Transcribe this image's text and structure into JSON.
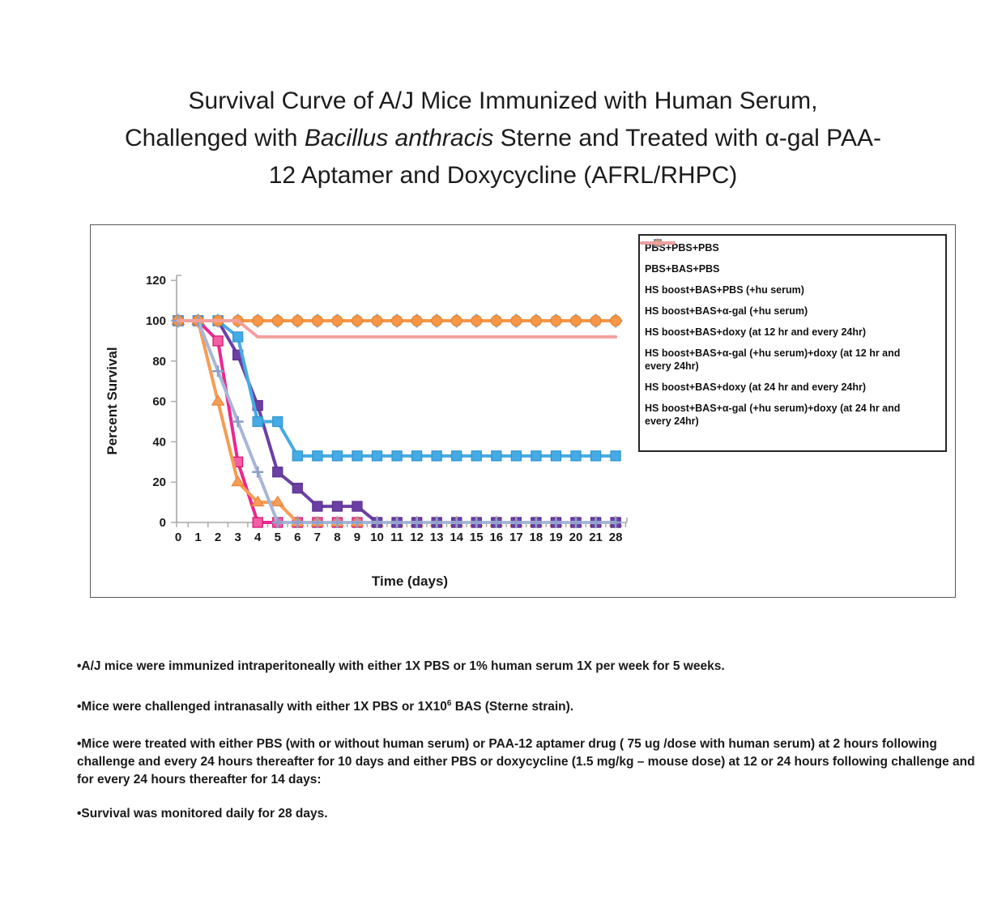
{
  "title": {
    "line1": "Survival Curve of A/J Mice Immunized with Human Serum,",
    "line2": {
      "pre": "Challenged with ",
      "italic": "Bacillus anthracis",
      "post": " Sterne and Treated with α-gal PAA-"
    },
    "line3": "12 Aptamer and Doxycycline (AFRL/RHPC)"
  },
  "chart_data": {
    "type": "line",
    "title": "",
    "xlabel": "Time (days)",
    "ylabel": "Percent Survival",
    "categories": [
      "0",
      "1",
      "2",
      "3",
      "4",
      "5",
      "6",
      "7",
      "8",
      "9",
      "10",
      "11",
      "12",
      "13",
      "14",
      "15",
      "16",
      "17",
      "18",
      "19",
      "20",
      "21",
      "28"
    ],
    "ylim": [
      0,
      120
    ],
    "yticks": [
      0,
      20,
      40,
      60,
      80,
      100,
      120
    ],
    "grid": false,
    "legend_position": "right-inside",
    "axis_color": "#a6a6a6",
    "series": [
      {
        "name": "PBS+PBS+PBS",
        "color": "#5b7fc0",
        "marker": "diamond",
        "marker_color": "#3a5ca8",
        "marker_edge": "#8fb4e3",
        "values": [
          100,
          100,
          100,
          100,
          100,
          100,
          100,
          100,
          100,
          100,
          100,
          100,
          100,
          100,
          100,
          100,
          100,
          100,
          100,
          100,
          100,
          100,
          100
        ]
      },
      {
        "name": "PBS+BAS+PBS",
        "color": "#ec268f",
        "marker": "square",
        "marker_color": "#f25fa5",
        "marker_edge": "#d6186e",
        "values": [
          100,
          100,
          90,
          30,
          0,
          0,
          0,
          0,
          0,
          0,
          0,
          0,
          0,
          0,
          0,
          0,
          0,
          0,
          0,
          0,
          0,
          0,
          0
        ]
      },
      {
        "name": "HS boost+BAS+PBS (+hu serum)",
        "color": "#f79c55",
        "marker": "triangle",
        "marker_color": "#f79c55",
        "marker_edge": "#ed7d31",
        "values": [
          100,
          100,
          60,
          20,
          10,
          10,
          0,
          0,
          0,
          0,
          0,
          0,
          0,
          0,
          0,
          0,
          0,
          0,
          0,
          0,
          0,
          0,
          0
        ]
      },
      {
        "name": "HS boost+BAS+α-gal (+hu serum)",
        "color": "#6c3fa5",
        "marker": "square",
        "marker_color": "#6c3fa5",
        "marker_edge": "#5a3390",
        "values": [
          100,
          100,
          100,
          83,
          58,
          25,
          17,
          8,
          8,
          8,
          0,
          0,
          0,
          0,
          0,
          0,
          0,
          0,
          0,
          0,
          0,
          0,
          0
        ]
      },
      {
        "name": "HS boost+BAS+doxy (at 12 hr and every 24hr)",
        "color": "#46abe4",
        "marker": "square",
        "marker_color": "#46abe4",
        "marker_edge": "#2f96d4",
        "values": [
          100,
          100,
          100,
          92,
          50,
          50,
          33,
          33,
          33,
          33,
          33,
          33,
          33,
          33,
          33,
          33,
          33,
          33,
          33,
          33,
          33,
          33,
          33
        ]
      },
      {
        "name": "HS boost+BAS+α-gal (+hu serum)+doxy (at 12 hr and every 24hr)",
        "color": "#f79646",
        "marker": "circle",
        "marker_color": "#f79646",
        "marker_edge": "#e0812f",
        "values": [
          100,
          100,
          100,
          100,
          100,
          100,
          100,
          100,
          100,
          100,
          100,
          100,
          100,
          100,
          100,
          100,
          100,
          100,
          100,
          100,
          100,
          100,
          100
        ]
      },
      {
        "name": "HS boost+BAS+doxy (at 24 hr and every 24hr)",
        "color": "#a7b6d8",
        "marker": "plus",
        "marker_color": "#8e9fc9",
        "marker_edge": "#8e9fc9",
        "values": [
          100,
          100,
          75,
          50,
          25,
          0,
          0,
          0,
          0,
          0,
          0,
          0,
          0,
          0,
          0,
          0,
          0,
          0,
          0,
          0,
          0,
          0,
          0
        ]
      },
      {
        "name": "HS boost+BAS+α-gal (+hu serum)+doxy (at 24 hr and every 24hr)",
        "color": "#f2a09e",
        "marker": "none",
        "marker_color": "#f2a09e",
        "marker_edge": "#f2a09e",
        "values": [
          100,
          100,
          100,
          100,
          92,
          92,
          92,
          92,
          92,
          92,
          92,
          92,
          92,
          92,
          92,
          92,
          92,
          92,
          92,
          92,
          92,
          92,
          92
        ]
      }
    ]
  },
  "notes": {
    "b1": "•A/J mice were immunized intraperitoneally with either 1X PBS or 1% human serum 1X per week for 5 weeks.",
    "b2": {
      "pre": "•Mice were challenged intranasally with either 1X PBS or 1X10",
      "sup": "6",
      "post": " BAS (Sterne strain)."
    },
    "b3": "•Mice were treated with either PBS (with or without human serum) or PAA-12 aptamer drug ( 75 ug /dose with human serum) at 2 hours following challenge and every 24 hours thereafter for 10 days and either PBS or doxycycline (1.5 mg/kg – mouse dose) at 12 or 24 hours following challenge and for every 24 hours thereafter for 14 days:",
    "b4": "•Survival was monitored daily for 28 days."
  }
}
